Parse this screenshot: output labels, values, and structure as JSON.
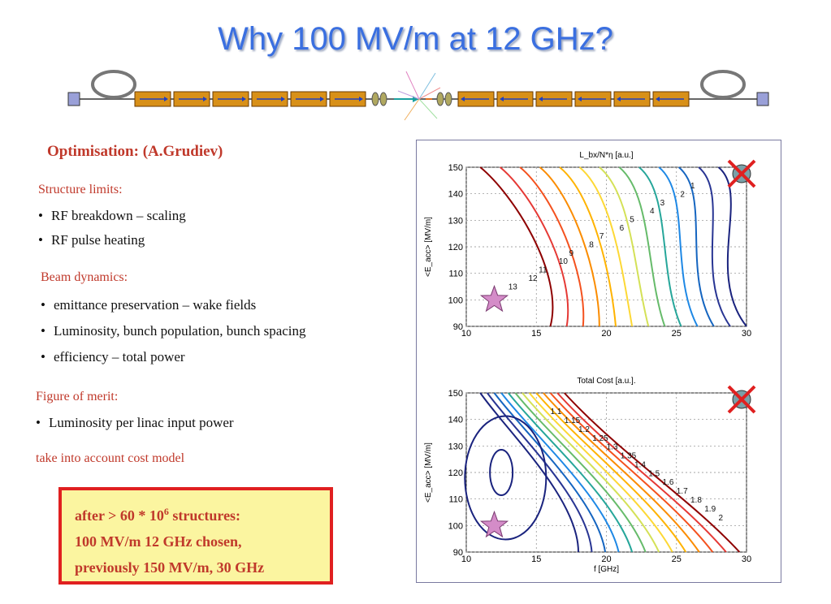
{
  "title": "Why 100 MV/m at 12 GHz?",
  "optimisation": "Optimisation:  (A.Grudiev)",
  "structure_limits": {
    "heading": "Structure limits:",
    "items": [
      "RF breakdown – scaling",
      "RF pulse heating"
    ]
  },
  "beam_dynamics": {
    "heading": "Beam dynamics:",
    "items": [
      "emittance preservation – wake fields",
      "Luminosity, bunch population, bunch spacing",
      "efficiency – total power"
    ]
  },
  "figure_of_merit": {
    "heading": "Figure of merit:",
    "items": [
      "Luminosity per linac input power"
    ]
  },
  "cost_note": "take into account cost model",
  "result_box": {
    "line1": "after > 60 * 10",
    "line1_sup": "6",
    "line1_tail": " structures:",
    "line2": "100 MV/m 12 GHz chosen,",
    "line3": "previously 150 MV/m, 30 GHz"
  },
  "colors": {
    "title": "#3a6fe0",
    "accent_red": "#c0392b",
    "box_fill": "#fbf5a0",
    "box_border": "#e02020"
  },
  "chart_data": [
    {
      "type": "contour",
      "title": "L_bx/N*η [a.u.]",
      "xlabel": "",
      "ylabel": "<E_acc> [MV/m]",
      "xlim": [
        10,
        30
      ],
      "ylim": [
        90,
        150
      ],
      "xticks": [
        "10",
        "15",
        "20",
        "25",
        "30"
      ],
      "yticks": [
        "90",
        "100",
        "110",
        "120",
        "130",
        "140",
        "150"
      ],
      "grid": true,
      "contour_labels": [
        "1",
        "2",
        "3",
        "4",
        "5",
        "6",
        "7",
        "8",
        "9",
        "10",
        "11",
        "12",
        "13"
      ],
      "markers": [
        {
          "kind": "star",
          "x": 12,
          "y": 100
        },
        {
          "kind": "cross",
          "x": 30,
          "y": 150
        }
      ]
    },
    {
      "type": "contour",
      "title": "Total Cost [a.u.].",
      "xlabel": "f [GHz]",
      "ylabel": "<E_acc> [MV/m]",
      "xlim": [
        10,
        30
      ],
      "ylim": [
        90,
        150
      ],
      "xticks": [
        "10",
        "15",
        "20",
        "25",
        "30"
      ],
      "yticks": [
        "90",
        "100",
        "110",
        "120",
        "130",
        "140",
        "150"
      ],
      "grid": true,
      "contour_labels": [
        "1.1",
        "1.15",
        "1.2",
        "1.25",
        "1.3",
        "1.35",
        "1.4",
        "1.5",
        "1.6",
        "1.7",
        "1.8",
        "1.9",
        "2"
      ],
      "markers": [
        {
          "kind": "star",
          "x": 12,
          "y": 100
        },
        {
          "kind": "cross",
          "x": 30,
          "y": 150
        }
      ]
    }
  ]
}
